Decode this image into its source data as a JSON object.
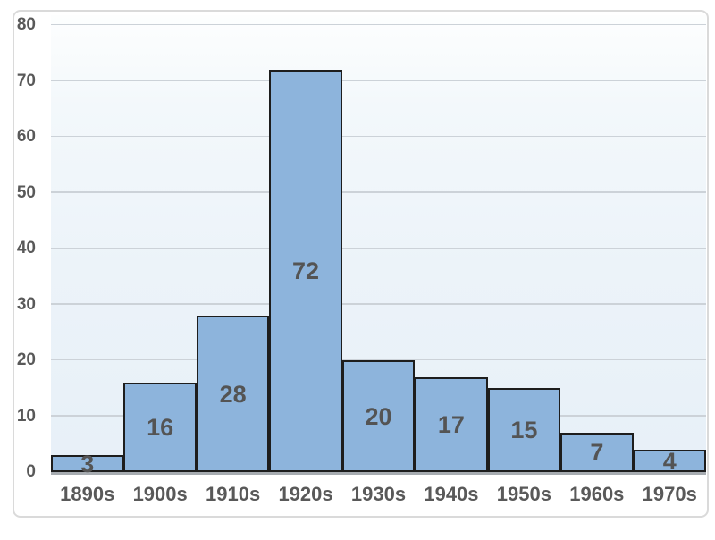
{
  "chart_data": {
    "type": "bar",
    "subtype": "histogram",
    "title": "",
    "xlabel": "",
    "ylabel": "",
    "categories": [
      "1890s",
      "1900s",
      "1910s",
      "1920s",
      "1930s",
      "1940s",
      "1950s",
      "1960s",
      "1970s"
    ],
    "values": [
      3,
      16,
      28,
      72,
      20,
      17,
      15,
      7,
      4
    ],
    "value_labels": [
      "3",
      "16",
      "28",
      "72",
      "20",
      "17",
      "15",
      "7",
      "4"
    ],
    "yticks": [
      "0",
      "10",
      "20",
      "30",
      "40",
      "50",
      "60",
      "70",
      "80"
    ],
    "ytick_values": [
      0,
      10,
      20,
      30,
      40,
      50,
      60,
      70,
      80
    ],
    "ylim": [
      0,
      80
    ],
    "grid": true,
    "gap_between_bars": 0,
    "legend_position": "none",
    "colors": {
      "bar_fill": "#8db4dc",
      "bar_border": "#1d1d1d",
      "gridline": "#ccd2d8",
      "plot_background": "#ecf3f9",
      "axis_line": "#a7acb1",
      "tick_label": "#595959",
      "value_label": "#545454",
      "canvas_border": "#dadada",
      "page_background": "#ffffff"
    }
  }
}
